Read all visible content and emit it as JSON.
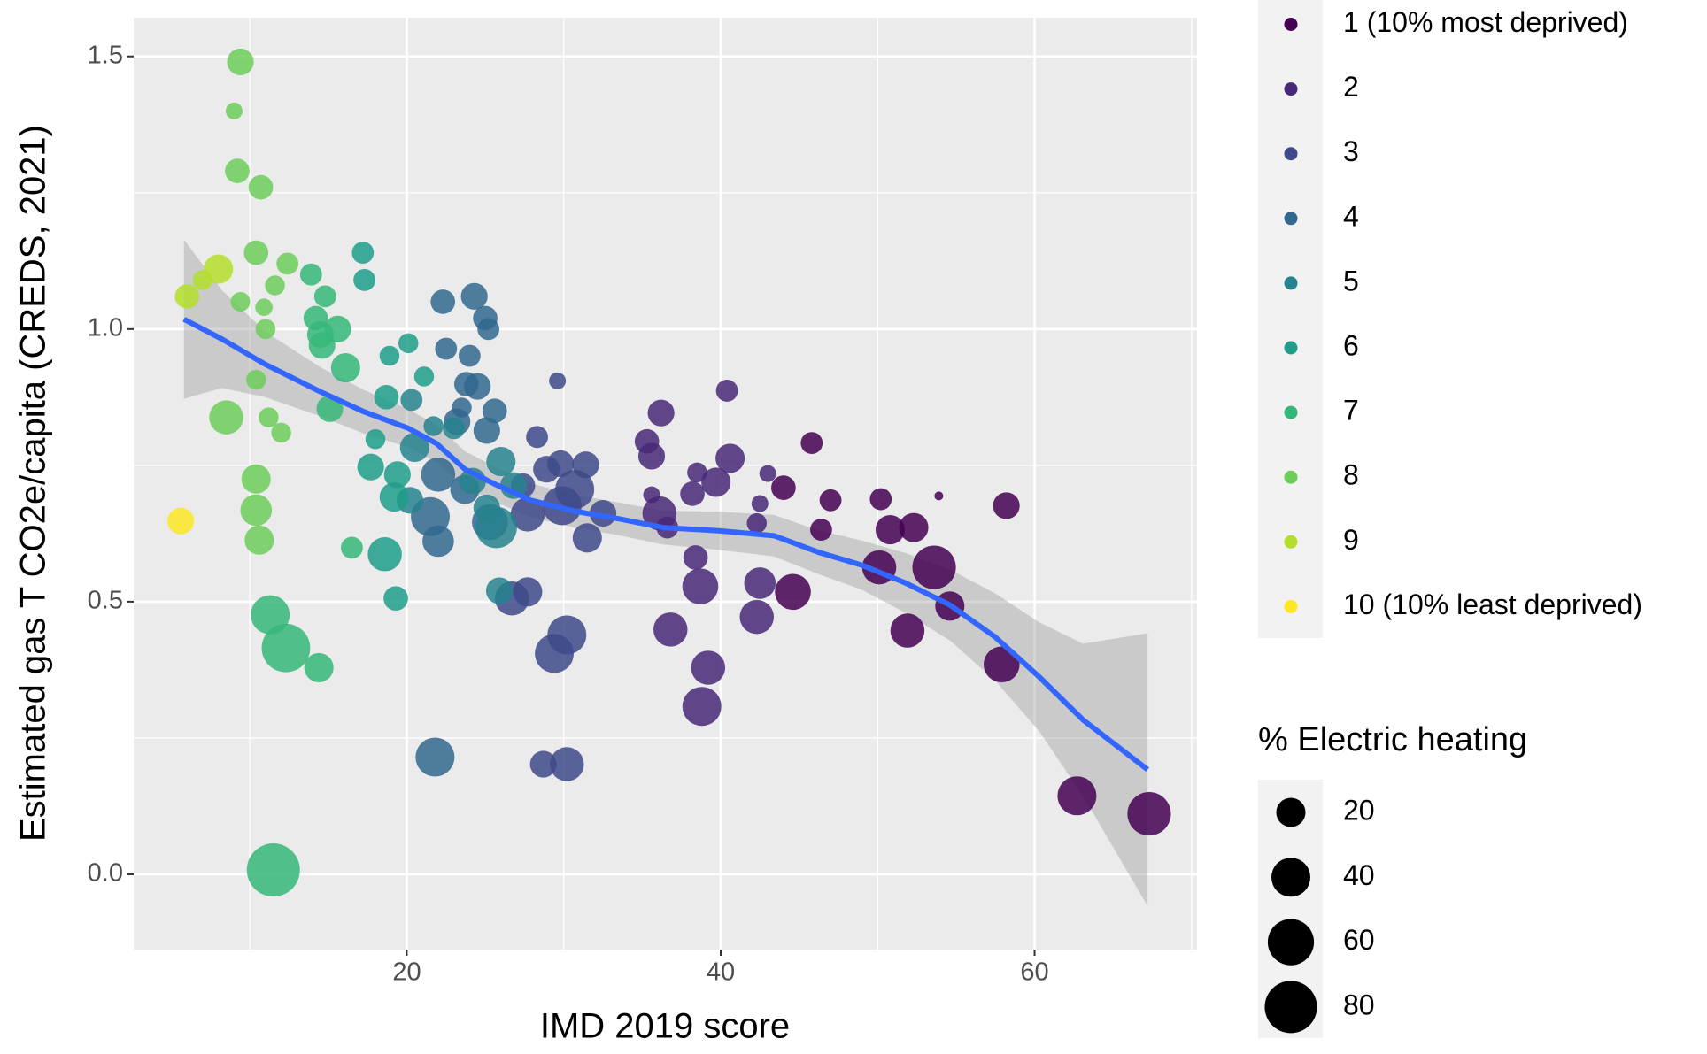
{
  "chart_data": {
    "type": "scatter",
    "xlabel": "IMD 2019 score",
    "ylabel": "Estimated gas T CO2e/capita (CREDS, 2021)",
    "xlim": [
      2.6,
      70.35
    ],
    "ylim": [
      -0.138,
      1.571
    ],
    "xticks": [
      20,
      40,
      60
    ],
    "yticks": [
      {
        "value": 0,
        "label": "0.0"
      },
      0.5,
      {
        "value": 1,
        "label": "1.0"
      },
      1.5
    ],
    "grid": true,
    "series": [
      {
        "name": "1 (10% most deprived)",
        "color": "#440154",
        "x": [
          44.0,
          45.8,
          44.6,
          46.4,
          47.0,
          50.2,
          50.8,
          52.3,
          50.1,
          51.9,
          53.6,
          53.9,
          54.6,
          58.2,
          57.9,
          62.7,
          67.3
        ],
        "y": [
          0.709,
          0.791,
          0.518,
          0.632,
          0.686,
          0.688,
          0.632,
          0.636,
          0.563,
          0.447,
          0.563,
          0.694,
          0.492,
          0.676,
          0.385,
          0.144,
          0.111
        ],
        "sizes": [
          13,
          10,
          33,
          10,
          10,
          10,
          20,
          20,
          29,
          29,
          52,
          3,
          20,
          16,
          33,
          40,
          52
        ]
      },
      {
        "name": "2",
        "color": "#482878",
        "x": [
          36.2,
          35.3,
          35.6,
          35.6,
          36.1,
          36.6,
          36.8,
          38.2,
          38.5,
          39.7,
          38.4,
          38.7,
          39.2,
          38.8,
          40.4,
          40.6,
          42.5,
          42.3,
          42.5,
          42.3,
          43.0
        ],
        "y": [
          0.846,
          0.794,
          0.767,
          0.696,
          0.662,
          0.636,
          0.449,
          0.698,
          0.737,
          0.719,
          0.581,
          0.528,
          0.379,
          0.308,
          0.887,
          0.763,
          0.68,
          0.644,
          0.534,
          0.472,
          0.735
        ],
        "sizes": [
          16,
          13,
          16,
          5.6,
          29,
          10,
          29,
          13,
          8,
          20,
          13,
          33,
          29,
          40,
          10,
          20,
          5.6,
          8,
          24,
          29,
          5.6
        ]
      },
      {
        "name": "3",
        "color": "#3E4A89",
        "x": [
          28.3,
          29.6,
          27.7,
          26.7,
          27.7,
          28.9,
          29.8,
          31.4,
          29.9,
          30.7,
          31.5,
          32.5,
          29.4,
          30.2,
          28.7,
          30.2,
          27.4
        ],
        "y": [
          0.802,
          0.905,
          0.518,
          0.506,
          0.66,
          0.743,
          0.753,
          0.751,
          0.676,
          0.706,
          0.617,
          0.662,
          0.405,
          0.439,
          0.202,
          0.202,
          0.713
        ],
        "sizes": [
          10,
          5.6,
          20,
          29,
          29,
          16,
          16,
          16,
          40,
          40,
          20,
          16,
          40,
          40,
          16,
          29,
          13
        ]
      },
      {
        "name": "4",
        "color": "#31688E",
        "x": [
          22.3,
          24.3,
          25.0,
          25.2,
          22.5,
          24.0,
          23.8,
          24.5,
          23.5,
          25.6,
          25.1,
          23.2,
          22.0,
          21.5,
          22.0,
          23.7,
          25.3,
          21.8
        ],
        "y": [
          1.05,
          1.06,
          1.02,
          1.0,
          0.964,
          0.951,
          0.899,
          0.895,
          0.856,
          0.85,
          0.814,
          0.83,
          0.733,
          0.656,
          0.611,
          0.706,
          0.646,
          0.215
        ],
        "sizes": [
          13,
          16,
          13,
          10,
          10,
          10,
          13,
          16,
          8,
          13,
          16,
          16,
          29,
          40,
          24,
          20,
          33,
          40
        ]
      },
      {
        "name": "5",
        "color": "#26828E",
        "x": [
          20.3,
          20.5,
          20.2,
          21.7,
          23.0,
          24.2,
          25.1,
          25.9,
          25.7,
          26.0,
          26.8
        ],
        "y": [
          0.87,
          0.783,
          0.686,
          0.822,
          0.818,
          0.721,
          0.672,
          0.52,
          0.636,
          0.757,
          0.713
        ],
        "sizes": [
          10,
          20,
          16,
          8,
          10,
          16,
          16,
          16,
          46,
          20,
          16
        ]
      },
      {
        "name": "6",
        "color": "#1F9E89",
        "x": [
          17.2,
          17.3,
          18.0,
          17.7,
          18.9,
          20.1,
          21.1,
          18.7,
          19.4,
          19.3,
          18.6,
          19.2
        ],
        "y": [
          1.14,
          1.09,
          0.798,
          0.747,
          0.951,
          0.974,
          0.913,
          0.875,
          0.733,
          0.506,
          0.587,
          0.692
        ],
        "sizes": [
          10,
          10,
          8,
          16,
          8,
          8,
          8,
          13,
          16,
          13,
          29,
          20
        ]
      },
      {
        "name": "7",
        "color": "#35B779",
        "x": [
          13.9,
          14.8,
          14.2,
          14.5,
          14.6,
          15.6,
          16.1,
          15.1,
          16.5,
          11.3,
          12.3,
          14.4,
          11.5
        ],
        "y": [
          1.1,
          1.06,
          1.02,
          0.99,
          0.97,
          1.0,
          0.929,
          0.854,
          0.599,
          0.476,
          0.415,
          0.379,
          0.008
        ],
        "sizes": [
          10,
          10,
          13,
          16,
          16,
          16,
          20,
          16,
          10,
          40,
          67,
          20,
          83
        ]
      },
      {
        "name": "8",
        "color": "#6DCD59",
        "x": [
          9.4,
          9.0,
          9.2,
          10.7,
          10.4,
          9.4,
          10.9,
          11.0,
          10.4,
          11.2,
          12.0,
          8.5,
          10.4,
          10.4,
          10.6,
          11.6,
          12.4
        ],
        "y": [
          1.49,
          1.4,
          1.29,
          1.26,
          1.14,
          1.05,
          1.04,
          1.0,
          0.907,
          0.838,
          0.81,
          0.838,
          0.725,
          0.668,
          0.613,
          1.08,
          1.12
        ],
        "sizes": [
          16,
          5.6,
          13,
          13,
          13,
          7.6,
          6,
          8,
          8,
          8,
          8,
          29,
          20,
          24,
          20,
          8,
          10
        ]
      },
      {
        "name": "9",
        "color": "#B4DE2C",
        "x": [
          6.0,
          8.0,
          7.0
        ],
        "y": [
          1.06,
          1.11,
          1.09
        ],
        "sizes": [
          13,
          20,
          8
        ]
      },
      {
        "name": "10 (10% least deprived)",
        "color": "#FDE725",
        "x": [
          5.6
        ],
        "y": [
          0.648
        ],
        "sizes": [
          16
        ]
      }
    ],
    "smooth": {
      "color": "#3366FF",
      "x": [
        5.8,
        8.2,
        11.0,
        14.5,
        17.3,
        20.1,
        21.9,
        23.7,
        25.8,
        27.9,
        30.7,
        33.5,
        36.3,
        39.9,
        43.4,
        46.2,
        49.0,
        51.8,
        54.6,
        57.5,
        60.3,
        63.1,
        67.2
      ],
      "y": [
        1.018,
        0.982,
        0.935,
        0.885,
        0.848,
        0.818,
        0.79,
        0.743,
        0.713,
        0.686,
        0.666,
        0.652,
        0.636,
        0.63,
        0.621,
        0.591,
        0.567,
        0.534,
        0.494,
        0.435,
        0.362,
        0.283,
        0.192
      ],
      "ymin": [
        0.872,
        0.892,
        0.875,
        0.84,
        0.808,
        0.783,
        0.756,
        0.71,
        0.681,
        0.655,
        0.636,
        0.622,
        0.605,
        0.595,
        0.583,
        0.551,
        0.522,
        0.479,
        0.429,
        0.355,
        0.262,
        0.143,
        -0.058
      ],
      "ymax": [
        1.164,
        1.072,
        0.995,
        0.93,
        0.888,
        0.853,
        0.824,
        0.776,
        0.745,
        0.717,
        0.696,
        0.682,
        0.667,
        0.665,
        0.659,
        0.631,
        0.612,
        0.589,
        0.559,
        0.515,
        0.462,
        0.423,
        0.442
      ]
    },
    "size_legend": {
      "title": "% Electric heating",
      "values": [
        20,
        40,
        60,
        80
      ]
    }
  }
}
